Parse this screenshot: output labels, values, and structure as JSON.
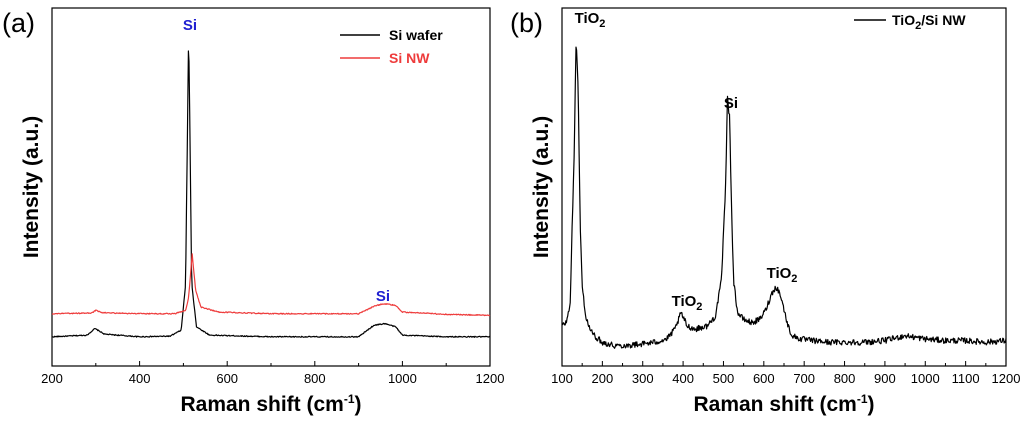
{
  "chart_data": [
    {
      "type": "line",
      "panel_label": "(a)",
      "xlabel": "Raman shift (cm",
      "xlabel_sup": "-1",
      "xlabel_close": ")",
      "ylabel": "Intensity (a.u.)",
      "xlim": [
        200,
        1200
      ],
      "ylim": [
        0,
        100
      ],
      "xticks": [
        "200",
        "400",
        "600",
        "800",
        "1000",
        "1200"
      ],
      "yticks_shown": false,
      "legend": {
        "position": "top-right",
        "entries": [
          "Si wafer",
          "Si NW"
        ]
      },
      "series": [
        {
          "name": "Si wafer",
          "color": "#000000",
          "x": [
            200,
            280,
            298,
            320,
            400,
            470,
            495,
            505,
            512,
            519,
            530,
            560,
            700,
            900,
            935,
            960,
            985,
            1000,
            1100,
            1200
          ],
          "y": [
            4,
            4.5,
            6.5,
            4.8,
            4,
            4.2,
            6,
            20,
            97,
            20,
            7,
            4.5,
            4,
            4,
            7.5,
            8,
            7,
            4.5,
            4,
            4
          ]
        },
        {
          "name": "Si NW",
          "color": "#ee3b3b",
          "x": [
            200,
            290,
            300,
            315,
            400,
            480,
            505,
            512,
            520,
            528,
            540,
            580,
            700,
            900,
            940,
            960,
            985,
            1000,
            1100,
            1200
          ],
          "y": [
            11,
            11.2,
            12,
            11.3,
            11,
            11,
            12,
            16,
            29,
            18,
            13,
            11.5,
            11,
            11,
            13.5,
            14,
            13.5,
            11.5,
            10.8,
            10.5
          ]
        }
      ],
      "annotations": [
        {
          "text": "Si",
          "x": 512,
          "y": 102,
          "color": "#1f1fd1"
        },
        {
          "text": "Si",
          "x": 960,
          "y": 19,
          "color": "#1f1fd1"
        }
      ]
    },
    {
      "type": "line",
      "panel_label": "(b)",
      "xlabel": "Raman shift (cm",
      "xlabel_sup": "-1",
      "xlabel_close": ")",
      "ylabel": "Intensity (a.u.)",
      "xlim": [
        100,
        1200
      ],
      "ylim": [
        0,
        100
      ],
      "xticks": [
        "100",
        "200",
        "300",
        "400",
        "500",
        "600",
        "700",
        "800",
        "900",
        "1000",
        "1100",
        "1200"
      ],
      "yticks_shown": false,
      "legend": {
        "position": "top-right",
        "entries": [
          "TiO2/Si NW"
        ]
      },
      "legend_parts": {
        "pre": "TiO",
        "sub": "2",
        "post": "/Si NW"
      },
      "series": [
        {
          "name": "TiO2/Si NW",
          "color": "#000000",
          "x": [
            100,
            110,
            120,
            130,
            135,
            140,
            145,
            150,
            160,
            170,
            180,
            200,
            230,
            260,
            300,
            330,
            360,
            380,
            395,
            410,
            430,
            460,
            480,
            495,
            505,
            510,
            515,
            520,
            525,
            535,
            550,
            570,
            590,
            605,
            620,
            630,
            640,
            650,
            660,
            670,
            690,
            720,
            760,
            800,
            850,
            900,
            950,
            1000,
            1050,
            1100,
            1150,
            1200
          ],
          "y": [
            8,
            9,
            14,
            60,
            97,
            80,
            40,
            20,
            10,
            7,
            5,
            3,
            2,
            2,
            2.5,
            3,
            4,
            7,
            12,
            8,
            7,
            8,
            11,
            22,
            50,
            78,
            72,
            45,
            22,
            12,
            10,
            9,
            10,
            13,
            18,
            20,
            18,
            13,
            8,
            5,
            4,
            3.5,
            3,
            3,
            3,
            3.5,
            5,
            4,
            3.5,
            3.5,
            3,
            3.5
          ]
        }
      ],
      "annotations": [
        {
          "text": "TiO",
          "sub": "2",
          "x": 138,
          "y": 104
        },
        {
          "text": "TiO",
          "sub": "2",
          "x": 395,
          "y": 15
        },
        {
          "text": "Si",
          "x": 514,
          "y": 79
        },
        {
          "text": "TiO",
          "sub": "2",
          "x": 640,
          "y": 23
        }
      ]
    }
  ]
}
